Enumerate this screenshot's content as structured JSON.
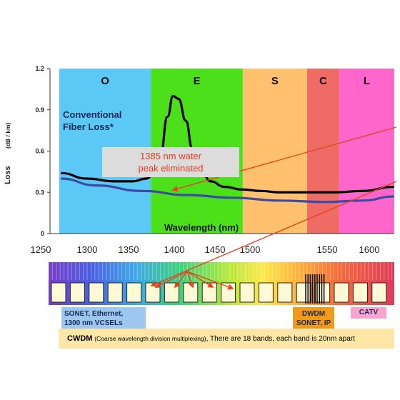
{
  "bands": [
    {
      "letter": "O",
      "from": 1260,
      "to": 1360,
      "color": "#5bc8f5"
    },
    {
      "letter": "E",
      "from": 1360,
      "to": 1460,
      "color": "#4ce01a"
    },
    {
      "letter": "S",
      "from": 1460,
      "to": 1530,
      "color": "#ffc16e"
    },
    {
      "letter": "C",
      "from": 1530,
      "to": 1565,
      "color": "#ef6b66"
    },
    {
      "letter": "L",
      "from": 1565,
      "to": 1625,
      "color": "#ff66cc"
    }
  ],
  "y_axis": {
    "label": "Loss",
    "unit": "(dB / km)",
    "ticks": [
      "0",
      "0.3",
      "0.6",
      "0.9",
      "1.2"
    ]
  },
  "x_axis": {
    "label": "Wavelength (nm)",
    "ticks": [
      "1250",
      "1300",
      "1350",
      "1400",
      "1450",
      "1500",
      "1550",
      "1600"
    ]
  },
  "annotations": {
    "conventional_line1": "Conventional",
    "conventional_line2": "Fiber Loss*",
    "water_peak_line1": "1385 nm water",
    "water_peak_line2": "peak eliminated"
  },
  "chart_data": {
    "type": "line",
    "xlabel": "Wavelength (nm)",
    "ylabel": "Loss (dB / km)",
    "xlim": [
      1250,
      1625
    ],
    "ylim": [
      0,
      1.2
    ],
    "series": [
      {
        "name": "Conventional Fiber Loss*",
        "color": "#000000",
        "x": [
          1262,
          1290,
          1320,
          1340,
          1355,
          1365,
          1370,
          1378,
          1384,
          1390,
          1398,
          1405,
          1415,
          1425,
          1440,
          1460,
          1480,
          1500,
          1530,
          1560,
          1590,
          1625
        ],
        "y": [
          0.44,
          0.4,
          0.38,
          0.38,
          0.4,
          0.45,
          0.55,
          0.85,
          1.0,
          0.98,
          0.82,
          0.62,
          0.45,
          0.38,
          0.34,
          0.32,
          0.31,
          0.3,
          0.3,
          0.3,
          0.31,
          0.34
        ]
      },
      {
        "name": "",
        "color": "#3d49a5",
        "x": [
          1262,
          1300,
          1350,
          1400,
          1450,
          1500,
          1550,
          1590,
          1625
        ],
        "y": [
          0.4,
          0.35,
          0.31,
          0.28,
          0.26,
          0.24,
          0.23,
          0.24,
          0.27
        ]
      }
    ]
  },
  "cwdm_channel_count": 18,
  "labels": {
    "sonet_line1": "SONET, Ethernet,",
    "sonet_line2": "1300 nm VCSELs",
    "dwdm_line1": "DWDM",
    "dwdm_line2": "SONET, IP",
    "catv": "CATV",
    "cwdm_bold": "CWDM",
    "cwdm_paren": "(Coarse wavelength division multiplexing)",
    "cwdm_rest": ",    There are 18 bands, each band is 20nm apart"
  },
  "colors": {
    "sonet_box": "#9cc8f0",
    "dwdm_box": "#f09a1a",
    "catv_box": "#f7a5cf",
    "cwdm_banner": "#fde6a6",
    "arrow": "#e8431f"
  }
}
